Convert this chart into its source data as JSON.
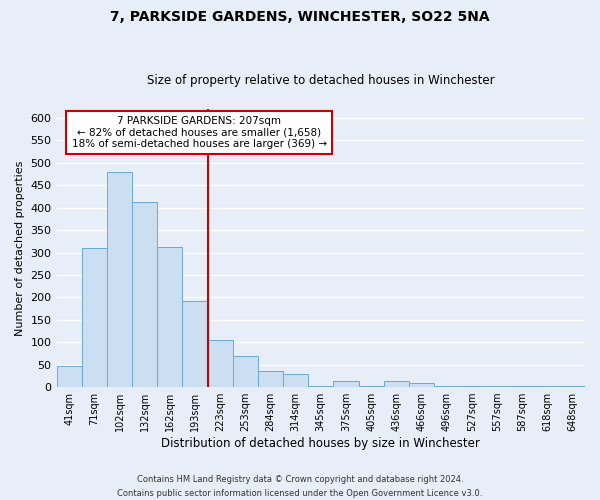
{
  "title": "7, PARKSIDE GARDENS, WINCHESTER, SO22 5NA",
  "subtitle": "Size of property relative to detached houses in Winchester",
  "xlabel": "Distribution of detached houses by size in Winchester",
  "ylabel": "Number of detached properties",
  "bar_labels": [
    "41sqm",
    "71sqm",
    "102sqm",
    "132sqm",
    "162sqm",
    "193sqm",
    "223sqm",
    "253sqm",
    "284sqm",
    "314sqm",
    "345sqm",
    "375sqm",
    "405sqm",
    "436sqm",
    "466sqm",
    "496sqm",
    "527sqm",
    "557sqm",
    "587sqm",
    "618sqm",
    "648sqm"
  ],
  "bar_values": [
    46,
    311,
    479,
    413,
    313,
    192,
    104,
    69,
    35,
    29,
    2,
    14,
    2,
    14,
    9,
    2,
    2,
    2,
    2,
    2,
    2
  ],
  "bar_color": "#ccdff2",
  "bar_edge_color": "#6aaad4",
  "vline_color": "#cc0000",
  "ylim": [
    0,
    620
  ],
  "yticks": [
    0,
    50,
    100,
    150,
    200,
    250,
    300,
    350,
    400,
    450,
    500,
    550,
    600
  ],
  "annotation_title": "7 PARKSIDE GARDENS: 207sqm",
  "annotation_line1": "← 82% of detached houses are smaller (1,658)",
  "annotation_line2": "18% of semi-detached houses are larger (369) →",
  "annotation_box_color": "#ffffff",
  "annotation_box_edge_color": "#cc0000",
  "footer_line1": "Contains HM Land Registry data © Crown copyright and database right 2024.",
  "footer_line2": "Contains public sector information licensed under the Open Government Licence v3.0.",
  "background_color": "#e8eef8",
  "grid_color": "#ffffff"
}
